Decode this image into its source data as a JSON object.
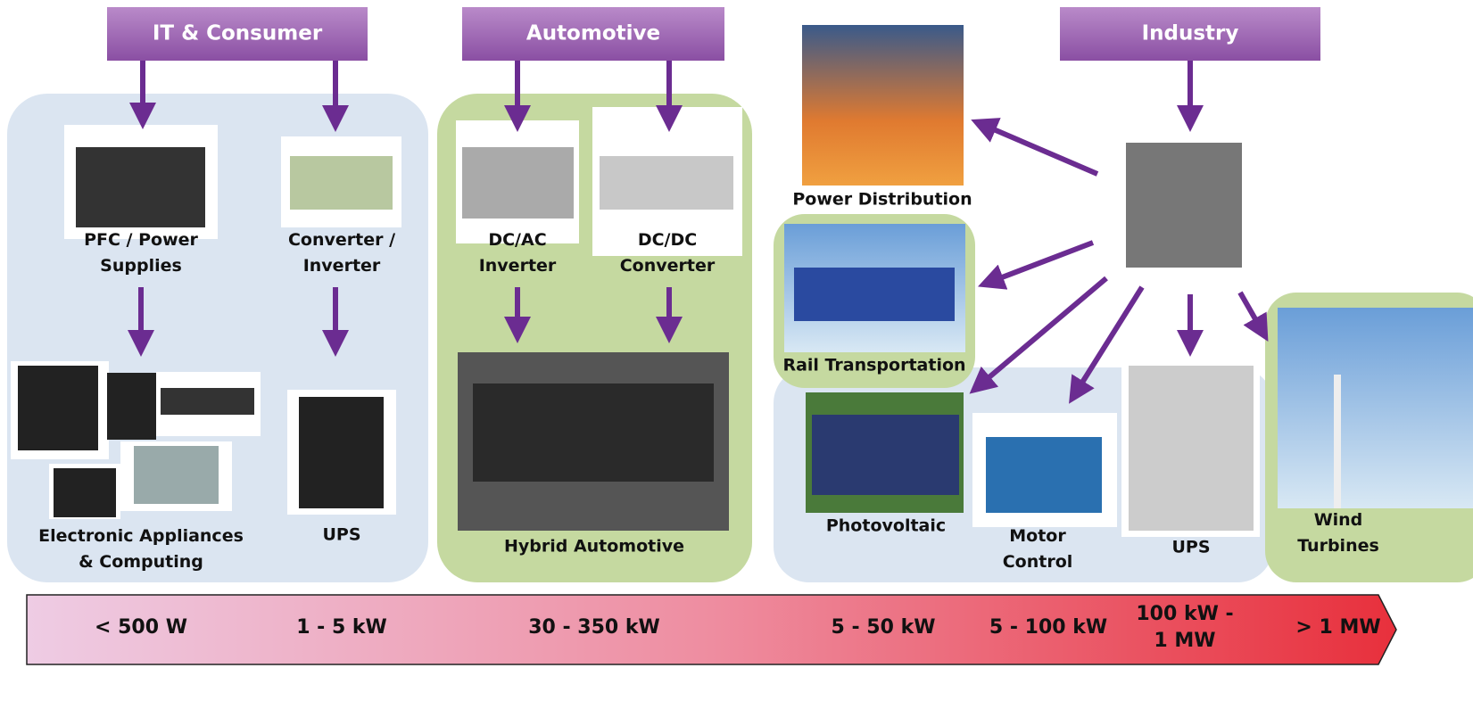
{
  "sectors": [
    {
      "label": "IT & Consumer"
    },
    {
      "label": "Automotive"
    },
    {
      "label": "Industry"
    }
  ],
  "nodes": [
    {
      "label": [
        "PFC / Power",
        "Supplies"
      ]
    },
    {
      "label": [
        "Converter /",
        "Inverter"
      ]
    },
    {
      "label": [
        "Electronic Appliances",
        "& Computing"
      ]
    },
    {
      "label": [
        "UPS"
      ]
    },
    {
      "label": [
        "DC/AC",
        "Inverter"
      ]
    },
    {
      "label": [
        "DC/DC",
        "Converter"
      ]
    },
    {
      "label": [
        "Hybrid Automotive"
      ]
    },
    {
      "label": [
        "Power Distribution"
      ]
    },
    {
      "label": [
        "Rail Transportation"
      ]
    },
    {
      "label": [
        "Photovoltaic"
      ]
    },
    {
      "label": [
        "Motor",
        "Control"
      ]
    },
    {
      "label": [
        "UPS"
      ]
    },
    {
      "label": [
        "Wind",
        "Turbines"
      ]
    }
  ],
  "power_scale": [
    {
      "label": [
        "< 500 W"
      ]
    },
    {
      "label": [
        "1 - 5 kW"
      ]
    },
    {
      "label": [
        "30 - 350 kW"
      ]
    },
    {
      "label": [
        "5 - 50 kW"
      ]
    },
    {
      "label": [
        "5 - 100 kW"
      ]
    },
    {
      "label": [
        "100 kW -",
        "1 MW"
      ]
    },
    {
      "label": [
        "> 1 MW"
      ]
    }
  ]
}
